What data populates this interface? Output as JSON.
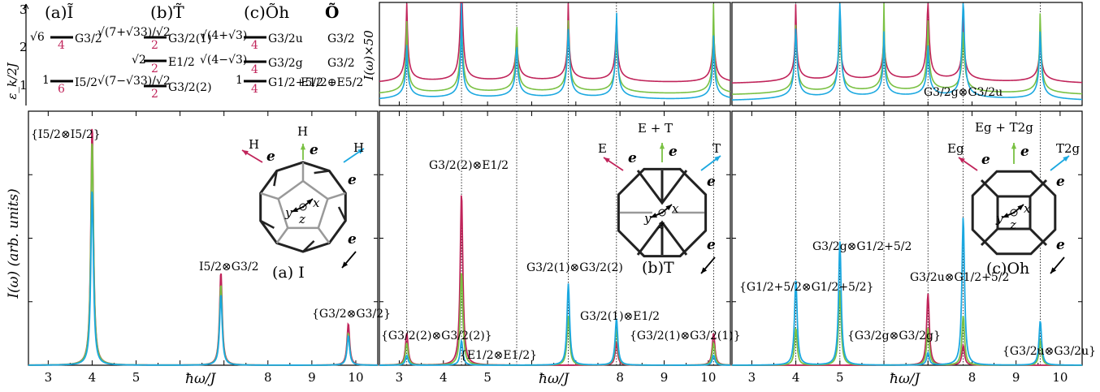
{
  "figure": {
    "energy_ylabel": "ε_k/2J",
    "inset_ylabel": "I(ω)×50",
    "main_ylabel": "I(ω) (arb. units)",
    "xlabel": "ħω/J",
    "colors": {
      "red": "#c0245a",
      "green": "#7ac143",
      "blue": "#1ba8e0"
    },
    "energy_scheme": {
      "headers": [
        "(a)Ĩ",
        "(b)T̃",
        "(c)Õh",
        "Õ"
      ],
      "a_levels": [
        {
          "coef": "√6",
          "mult": "4",
          "irrep": "G3/2"
        },
        {
          "coef": "1",
          "mult": "6",
          "irrep": "I5/2"
        }
      ],
      "b_levels": [
        {
          "coef": "√(7+√33)/√2",
          "mult": "2",
          "irrep": "G3/2(1)"
        },
        {
          "coef": "√2",
          "mult": "2",
          "irrep": "E1/2"
        },
        {
          "coef": "√2",
          "mult": "2",
          "irrep": "E1/2"
        },
        {
          "coef": "√(7−√33)/√2",
          "mult": "2",
          "irrep": "G3/2(2)"
        }
      ],
      "c_levels": [
        {
          "coef": "√(4+√3)",
          "mult": "4",
          "irrep": "G3/2u"
        },
        {
          "coef": "√(4−√3)",
          "mult": "4",
          "irrep": "G3/2g"
        },
        {
          "coef": "1",
          "mult": "4",
          "irrep": "G1/2+5/2"
        }
      ],
      "o_levels": [
        "G3/2",
        "G3/2",
        "E1/2⊕E5/2"
      ]
    },
    "panels": [
      {
        "id": "a",
        "title": "(a) I",
        "arrows": {
          "left": "H",
          "mid": "H",
          "right": "H"
        },
        "e_sc": "e_sc",
        "e_in": "e_in",
        "peak_labels": [
          "{I5/2⊗I5/2}",
          "I5/2⊗G3/2",
          "{G3/2⊗G3/2}"
        ]
      },
      {
        "id": "b",
        "title": "(b)T",
        "arrows": {
          "left": "E",
          "mid": "E + T",
          "right": "T"
        },
        "e_sc": "e_sc",
        "e_in": "e_in",
        "peak_labels": [
          "{G3/2(2)⊗G3/2(2)}",
          "G3/2(2)⊗E1/2",
          "{E1/2⊗E1/2}",
          "G3/2(1)⊗G3/2(2)",
          "G3/2(1)⊗E1/2",
          "{G3/2(1)⊗G3/2(1)}"
        ]
      },
      {
        "id": "c",
        "title": "(c)Oh",
        "arrows": {
          "left": "Eg",
          "mid": "Eg + T2g",
          "right": "T2g"
        },
        "e_sc": "e_sc",
        "e_in": "e_in",
        "peak_labels": [
          "{G1/2+5/2⊗G1/2+5/2}",
          "G3/2g⊗G1/2+5/2",
          "{G3/2g⊗G3/2g}",
          "G3/2u⊗G1/2+5/2",
          "{G3/2u⊗G3/2u}"
        ],
        "inset_label": "G3/2g⊗G3/2u"
      }
    ]
  },
  "chart_data": [
    {
      "type": "line",
      "panel": "a",
      "x_ticks": [
        3,
        4,
        5,
        6,
        7,
        8,
        9,
        10
      ],
      "x_tick_labels": [
        "3",
        "4",
        "5",
        "",
        "",
        "8",
        "9",
        "10"
      ],
      "xlim": [
        2.55,
        10.5
      ],
      "ylim": [
        0,
        1.0
      ],
      "series": [
        {
          "color": "red",
          "peaks": [
            [
              4.0,
              0.98
            ],
            [
              6.93,
              0.38
            ],
            [
              9.83,
              0.17
            ]
          ]
        },
        {
          "color": "green",
          "peaks": [
            [
              4.0,
              0.92
            ],
            [
              6.93,
              0.33
            ],
            [
              9.83,
              0.13
            ]
          ]
        },
        {
          "color": "blue",
          "peaks": [
            [
              4.0,
              0.72
            ],
            [
              6.93,
              0.29
            ],
            [
              9.83,
              0.12
            ]
          ]
        }
      ]
    },
    {
      "type": "line",
      "panel": "b",
      "x_ticks": [
        3,
        4,
        5,
        6,
        7,
        8,
        9,
        10
      ],
      "x_tick_labels": [
        "3",
        "4",
        "5",
        "",
        "",
        "8",
        "9",
        "10"
      ],
      "xlim": [
        2.55,
        10.5
      ],
      "ylim": [
        0,
        1.0
      ],
      "vlines": [
        3.17,
        4.41,
        5.66,
        6.83,
        7.92,
        10.12
      ],
      "series": [
        {
          "color": "red",
          "peaks": [
            [
              3.17,
              0.13
            ],
            [
              4.41,
              0.7
            ],
            [
              7.92,
              0.09
            ],
            [
              10.12,
              0.13
            ]
          ]
        },
        {
          "color": "green",
          "peaks": [
            [
              3.17,
              0.09
            ],
            [
              4.41,
              0.38
            ],
            [
              6.83,
              0.2
            ],
            [
              7.92,
              0.15
            ],
            [
              10.12,
              0.09
            ]
          ]
        },
        {
          "color": "blue",
          "peaks": [
            [
              3.17,
              0.04
            ],
            [
              4.41,
              0.1
            ],
            [
              6.83,
              0.33
            ],
            [
              7.92,
              0.19
            ],
            [
              10.12,
              0.04
            ]
          ]
        }
      ],
      "inset": {
        "ylim": [
          0,
          1.0
        ],
        "series": [
          {
            "color": "red",
            "x": [
              2.6,
              3.2,
              4.0,
              4.4,
              5.0,
              6.0,
              6.83,
              7.5,
              8.0,
              9.0,
              10.12,
              10.5
            ]
          },
          {
            "color": "green"
          },
          {
            "color": "blue"
          }
        ]
      }
    },
    {
      "type": "line",
      "panel": "c",
      "x_ticks": [
        3,
        4,
        5,
        6,
        7,
        8,
        9,
        10
      ],
      "x_tick_labels": [
        "3",
        "4",
        "5",
        "",
        "",
        "8",
        "9",
        "10"
      ],
      "xlim": [
        2.55,
        10.5
      ],
      "ylim": [
        0,
        1.0
      ],
      "vlines": [
        4.0,
        5.0,
        6.0,
        7.0,
        7.8,
        9.55
      ],
      "series": [
        {
          "color": "red",
          "peaks": [
            [
              7.0,
              0.29
            ],
            [
              7.8,
              0.08
            ]
          ]
        },
        {
          "color": "green",
          "peaks": [
            [
              4.0,
              0.15
            ],
            [
              5.0,
              0.3
            ],
            [
              7.0,
              0.15
            ],
            [
              7.8,
              0.2
            ],
            [
              9.55,
              0.1
            ]
          ]
        },
        {
          "color": "blue",
          "peaks": [
            [
              4.0,
              0.35
            ],
            [
              5.0,
              0.5
            ],
            [
              7.0,
              0.05
            ],
            [
              7.8,
              0.6
            ],
            [
              9.55,
              0.18
            ]
          ]
        }
      ]
    }
  ]
}
